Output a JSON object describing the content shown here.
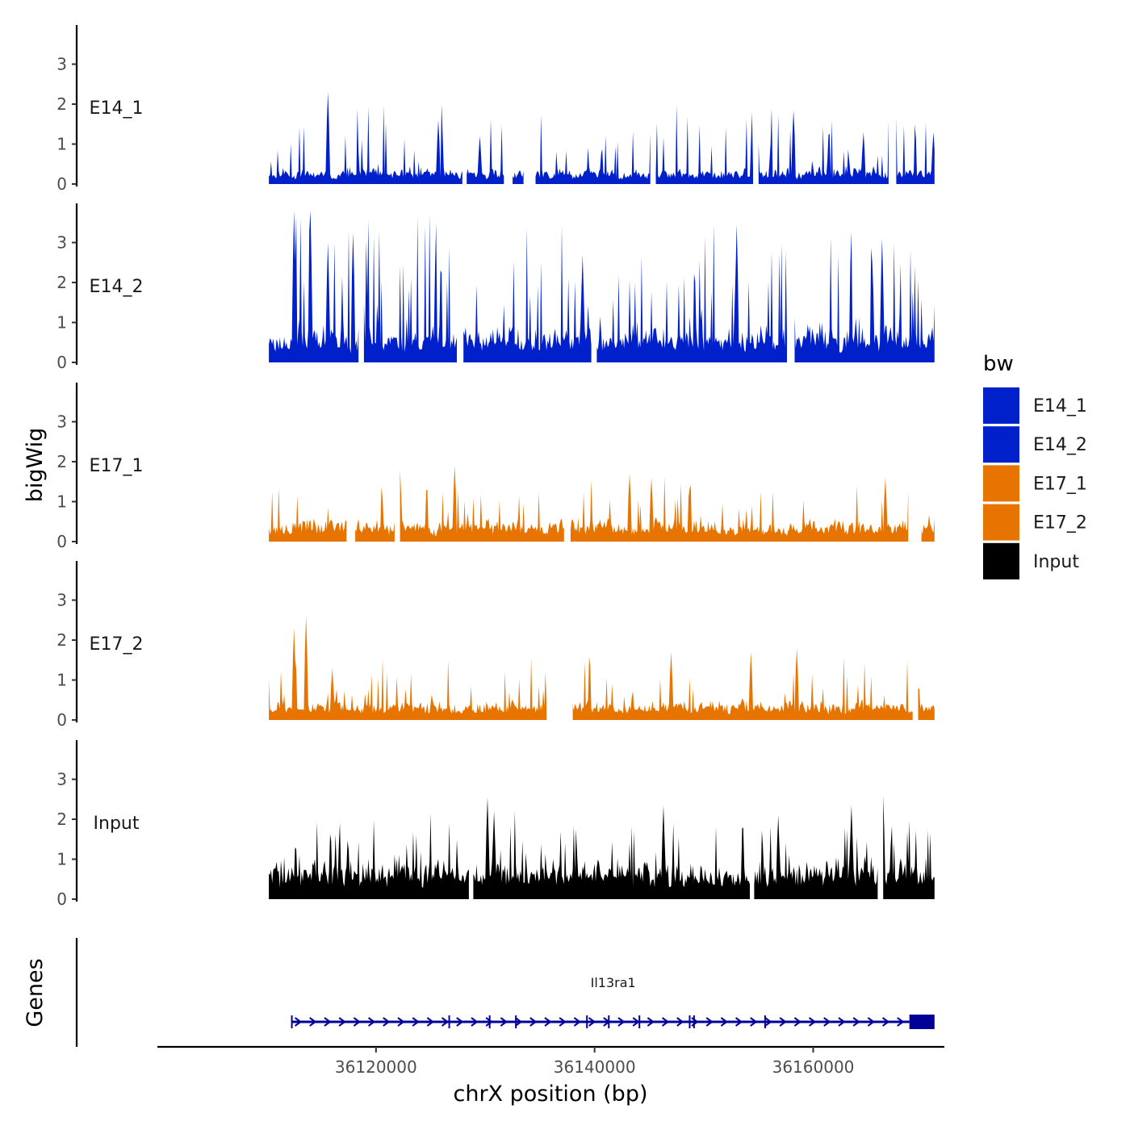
{
  "chart_data": {
    "type": "area",
    "xlabel": "chrX position (bp)",
    "ylabel": "bigWig",
    "gene_panel_label": "Genes",
    "xlim": [
      36100000,
      36172000
    ],
    "x_range_data": [
      36110200,
      36171100
    ],
    "x_ticks": [
      {
        "value": 36120000,
        "label": "36120000"
      },
      {
        "value": 36140000,
        "label": "36140000"
      },
      {
        "value": 36160000,
        "label": "36160000"
      }
    ],
    "ylim": [
      0,
      3.9
    ],
    "y_ticks": [
      {
        "value": 0,
        "label": "0"
      },
      {
        "value": 1,
        "label": "1"
      },
      {
        "value": 2,
        "label": "2"
      },
      {
        "value": 3,
        "label": "3"
      }
    ],
    "legend": {
      "title": "bw",
      "entries": [
        {
          "label": "E14_1",
          "color": "#0020CC"
        },
        {
          "label": "E14_2",
          "color": "#0020CC"
        },
        {
          "label": "E17_1",
          "color": "#E87400"
        },
        {
          "label": "E17_2",
          "color": "#E87400"
        },
        {
          "label": "Input",
          "color": "#000000"
        }
      ]
    },
    "series": [
      {
        "name": "E14_1",
        "color": "#0020CC",
        "seed": 11,
        "base": 0.25,
        "spike": 1.7,
        "spikeProb": 0.13,
        "peaks": [
          [
            36115600,
            2.3
          ],
          [
            36125700,
            1.6
          ],
          [
            36129500,
            1.2
          ],
          [
            36158200,
            1.85
          ],
          [
            36164600,
            1.3
          ],
          [
            36171000,
            1.3
          ]
        ],
        "gaps": [
          [
            36128000,
            36128200
          ],
          [
            36131800,
            36132400
          ],
          [
            36133600,
            36134500
          ],
          [
            36145200,
            36145500
          ],
          [
            36154600,
            36154900
          ],
          [
            36167000,
            36167500
          ]
        ]
      },
      {
        "name": "E14_2",
        "color": "#0020CC",
        "seed": 23,
        "base": 0.55,
        "spike": 3.0,
        "spikeProb": 0.18,
        "peaks": [
          [
            36112500,
            3.8
          ],
          [
            36114000,
            3.8
          ],
          [
            36115600,
            3.0
          ],
          [
            36117900,
            3.25
          ],
          [
            36138900,
            2.7
          ],
          [
            36153000,
            3.45
          ],
          [
            36166300,
            3.1
          ]
        ],
        "gaps": [
          [
            36118500,
            36118800
          ],
          [
            36127500,
            36127900
          ],
          [
            36139800,
            36140100
          ],
          [
            36157700,
            36158200
          ]
        ]
      },
      {
        "name": "E17_1",
        "color": "#E87400",
        "seed": 37,
        "base": 0.35,
        "spike": 1.2,
        "spikeProb": 0.12,
        "peaks": [
          [
            36122200,
            1.8
          ],
          [
            36127200,
            1.9
          ],
          [
            36143200,
            1.7
          ],
          [
            36145200,
            1.6
          ],
          [
            36166600,
            1.6
          ]
        ],
        "gaps": [
          [
            36117400,
            36118000
          ],
          [
            36121800,
            36122100
          ],
          [
            36137300,
            36137700
          ],
          [
            36168800,
            36169800
          ]
        ]
      },
      {
        "name": "E17_2",
        "color": "#E87400",
        "seed": 53,
        "base": 0.3,
        "spike": 1.3,
        "spikeProb": 0.13,
        "peaks": [
          [
            36112500,
            2.3
          ],
          [
            36113600,
            2.6
          ],
          [
            36116000,
            1.3
          ],
          [
            36147000,
            1.7
          ],
          [
            36154300,
            1.7
          ],
          [
            36158500,
            1.8
          ]
        ],
        "gaps": [
          [
            36135700,
            36137900
          ],
          [
            36169200,
            36169500
          ]
        ]
      },
      {
        "name": "Input",
        "color": "#000000",
        "seed": 71,
        "base": 0.6,
        "spike": 1.4,
        "spikeProb": 0.15,
        "peaks": [
          [
            36130200,
            2.55
          ],
          [
            36130800,
            2.2
          ],
          [
            36146300,
            2.35
          ],
          [
            36156800,
            2.1
          ],
          [
            36163500,
            2.35
          ],
          [
            36166400,
            2.6
          ]
        ],
        "gaps": [
          [
            36128600,
            36128800
          ],
          [
            36154300,
            36154500
          ],
          [
            36166000,
            36166300
          ]
        ]
      }
    ],
    "genes": [
      {
        "name": "Il13ra1",
        "start": 36112300,
        "end": 36171100,
        "strand": "+",
        "color": "#000099",
        "thick_start": 36168800,
        "exons": [
          36112300,
          36126700,
          36130400,
          36132800,
          36139300,
          36141300,
          36144100,
          36148700,
          36149100,
          36155600
        ]
      }
    ]
  }
}
